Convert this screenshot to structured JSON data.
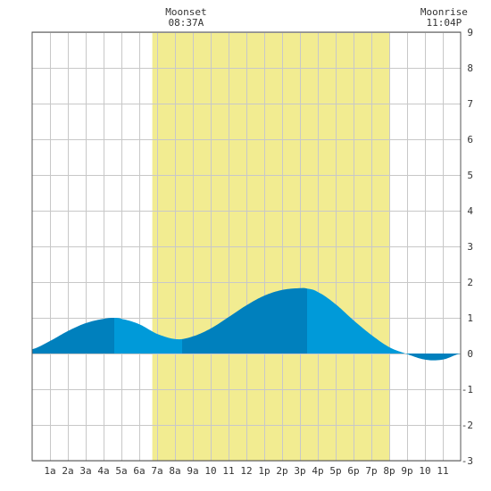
{
  "chart_data": {
    "type": "area",
    "title": "",
    "xlabel": "",
    "ylabel": "",
    "x_unit": "hour",
    "xlim": [
      0,
      24
    ],
    "ylim": [
      -3,
      9
    ],
    "yticks": [
      -3,
      -2,
      -1,
      0,
      1,
      2,
      3,
      4,
      5,
      6,
      7,
      8,
      9
    ],
    "ytick_labels": [
      "-3",
      "-2",
      "-1",
      "0",
      "1",
      "2",
      "3",
      "4",
      "5",
      "6",
      "7",
      "8",
      "9"
    ],
    "xticks": [
      1,
      2,
      3,
      4,
      5,
      6,
      7,
      8,
      9,
      10,
      11,
      12,
      13,
      14,
      15,
      16,
      17,
      18,
      19,
      20,
      21,
      22,
      23
    ],
    "xtick_labels": [
      "1a",
      "2a",
      "3a",
      "4a",
      "5a",
      "6a",
      "7a",
      "8a",
      "9a",
      "10",
      "11",
      "12",
      "1p",
      "2p",
      "3p",
      "4p",
      "5p",
      "6p",
      "7p",
      "8p",
      "9p",
      "10",
      "11"
    ],
    "grid": true,
    "shaded_band": {
      "from": 6.73,
      "to": 20.0,
      "color": "#f2ec91"
    },
    "series": [
      {
        "x": [
          0,
          1,
          2,
          3,
          4,
          4.6,
          5,
          6,
          7,
          8.1,
          9,
          10,
          11,
          12,
          13,
          14,
          15,
          15.4,
          16,
          17,
          18,
          19,
          20,
          20.9,
          22,
          23,
          24
        ],
        "values": [
          0.12,
          0.35,
          0.63,
          0.85,
          0.97,
          1.0,
          0.97,
          0.82,
          0.55,
          0.4,
          0.48,
          0.7,
          1.02,
          1.35,
          1.62,
          1.78,
          1.83,
          1.82,
          1.72,
          1.38,
          0.93,
          0.52,
          0.18,
          0.0,
          -0.17,
          -0.17,
          0.0
        ]
      }
    ],
    "bands": [
      {
        "from": 0.0,
        "to": 4.6,
        "color": "#0080bd"
      },
      {
        "from": 4.6,
        "to": 8.4,
        "color": "#009ad9"
      },
      {
        "from": 8.4,
        "to": 15.4,
        "color": "#0080bd"
      },
      {
        "from": 15.4,
        "to": 21.1,
        "color": "#009ad9"
      },
      {
        "from": 21.1,
        "to": 24.0,
        "color": "#0080bd"
      }
    ],
    "annotations": [
      {
        "label": "Moonset",
        "time": "08:37A",
        "x": 8.62
      },
      {
        "label": "Moonrise",
        "time": "11:04P",
        "x": 23.07
      }
    ]
  },
  "colors": {
    "grid": "#c8c8c8",
    "frame": "#555555",
    "background": "#ffffff"
  }
}
